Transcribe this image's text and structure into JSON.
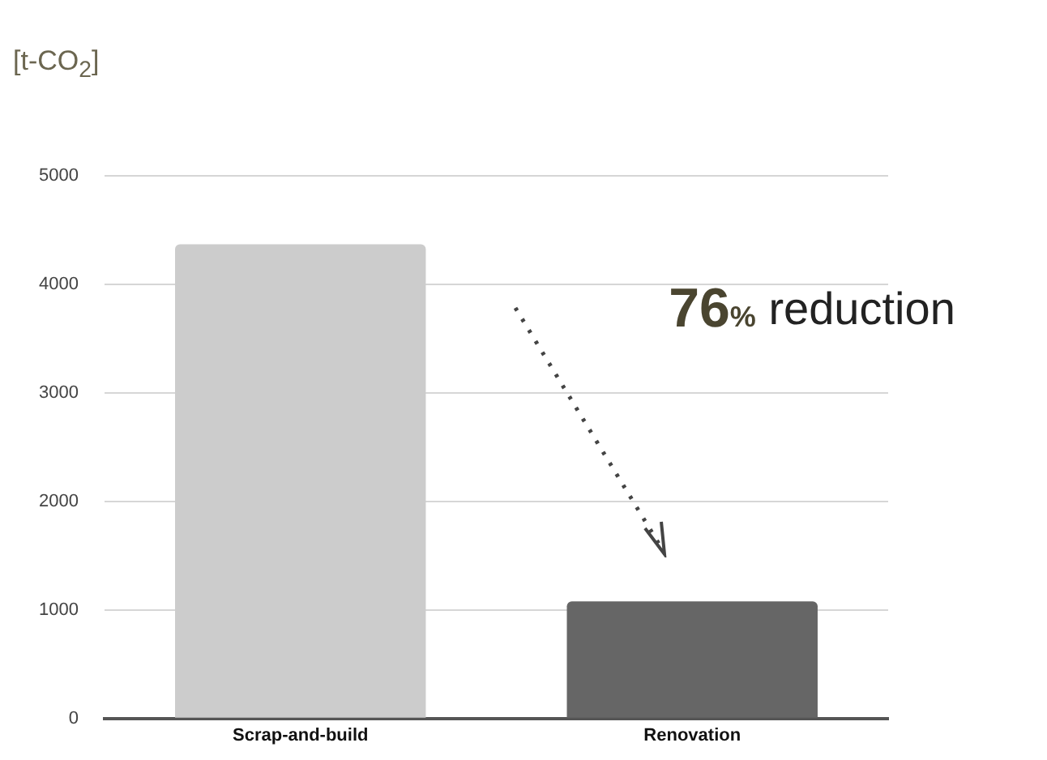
{
  "chart_data": {
    "type": "bar",
    "ylabel": "[t-CO$_{2}$]",
    "categories": [
      "Scrap-and-build",
      "Renovation"
    ],
    "values": [
      4370,
      1080
    ],
    "colors": [
      "#cccccc",
      "#666666"
    ],
    "ylim": [
      0,
      5000
    ],
    "yticks": [
      0,
      1000,
      2000,
      3000,
      4000,
      5000
    ],
    "grid": "y",
    "legend": false,
    "annotations": [
      "76% reduction"
    ]
  }
}
